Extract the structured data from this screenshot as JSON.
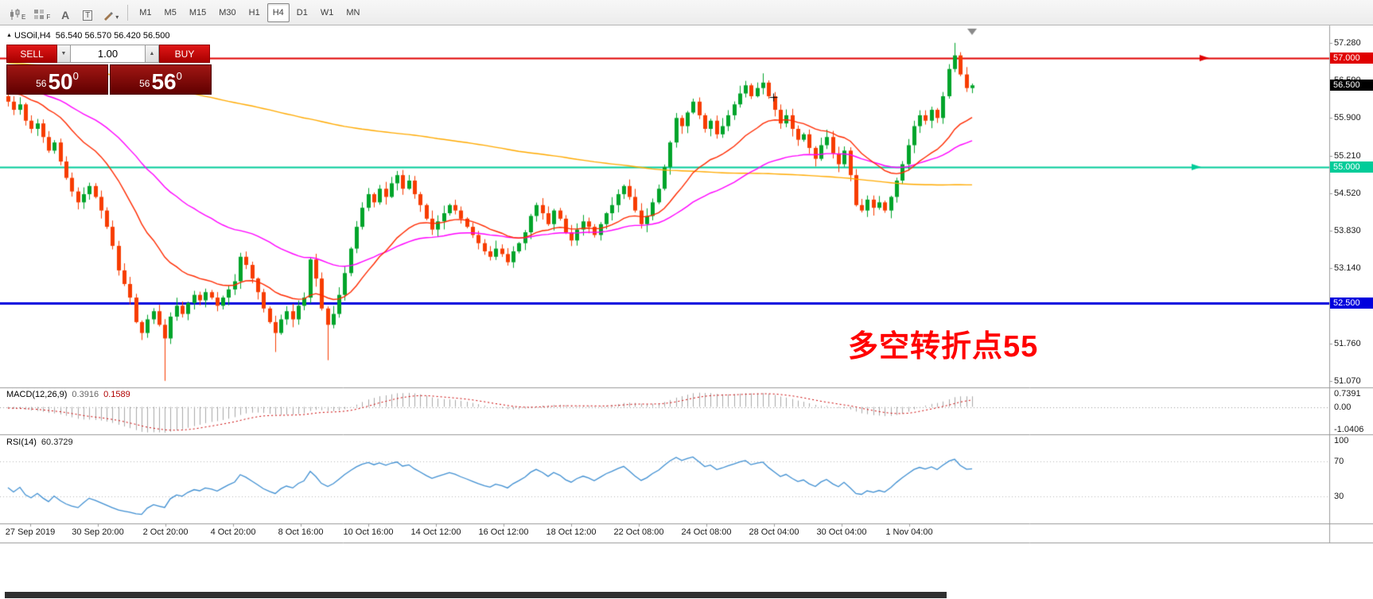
{
  "toolbar": {
    "icons": [
      {
        "name": "candlestick-chart-icon",
        "sub": "E"
      },
      {
        "name": "tile-windows-icon",
        "sub": "F"
      },
      {
        "name": "text-tool-icon",
        "glyph": "A"
      },
      {
        "name": "textbox-tool-icon",
        "glyph": "T"
      },
      {
        "name": "draw-tool-icon",
        "caret": "▾"
      }
    ],
    "timeframes": [
      "M1",
      "M5",
      "M15",
      "M30",
      "H1",
      "H4",
      "D1",
      "W1",
      "MN"
    ],
    "active_timeframe": "H4"
  },
  "symbol_header": {
    "triangle": "▲",
    "symbol": "USOil,H4",
    "ohlc": "56.540 56.570 56.420 56.500"
  },
  "trade_panel": {
    "sell_label": "SELL",
    "buy_label": "BUY",
    "volume": "1.00",
    "dec_glyph": "▼",
    "inc_glyph": "▲",
    "bid_display": {
      "prefix": "56",
      "big": "50",
      "sup": "0"
    },
    "ask_display": {
      "prefix": "56",
      "big": "56",
      "sup": "0"
    }
  },
  "chart_data": {
    "type": "candlestick",
    "symbol": "USOil",
    "timeframe": "H4",
    "title": "USOil,H4 56.540 56.570 56.420 56.500",
    "price_axis": {
      "labels": [
        "57.280",
        "56.590",
        "55.900",
        "55.210",
        "54.520",
        "53.830",
        "53.140",
        "52.450",
        "51.760",
        "51.070"
      ],
      "max": 57.6,
      "min": 50.95
    },
    "hlines": [
      {
        "price": 57.0,
        "label": "57.000",
        "color": "#e00000",
        "width": 2
      },
      {
        "price": 55.0,
        "label": "55.000",
        "color": "#00cc99",
        "width": 2
      },
      {
        "price": 52.5,
        "label": "52.500",
        "color": "#0000dd",
        "width": 3
      }
    ],
    "current_price": {
      "price": 56.5,
      "label": "56.500",
      "badge_color": "#000000"
    },
    "candles": {
      "up_color": "#00a42a",
      "down_color": "#f73c00",
      "first_open": 56.3,
      "closes": [
        56.2,
        56.05,
        56.15,
        55.85,
        55.7,
        55.8,
        55.55,
        55.3,
        55.45,
        55.1,
        54.8,
        54.55,
        54.35,
        54.5,
        54.65,
        54.45,
        54.2,
        53.9,
        53.55,
        53.1,
        52.85,
        52.6,
        52.15,
        51.95,
        52.2,
        52.35,
        52.1,
        51.85,
        52.25,
        52.45,
        52.3,
        52.5,
        52.65,
        52.55,
        52.7,
        52.6,
        52.45,
        52.6,
        52.75,
        52.9,
        53.35,
        53.2,
        52.95,
        52.7,
        52.4,
        52.15,
        51.95,
        52.2,
        52.35,
        52.2,
        52.45,
        52.6,
        53.3,
        52.95,
        52.4,
        52.1,
        52.3,
        52.65,
        53.05,
        53.5,
        53.9,
        54.25,
        54.5,
        54.35,
        54.6,
        54.45,
        54.7,
        54.85,
        54.6,
        54.75,
        54.5,
        54.3,
        54.05,
        53.85,
        54.0,
        54.15,
        54.3,
        54.2,
        54.05,
        53.9,
        53.75,
        53.6,
        53.45,
        53.35,
        53.5,
        53.4,
        53.25,
        53.45,
        53.6,
        53.8,
        54.1,
        54.3,
        54.15,
        53.95,
        54.2,
        54.05,
        53.8,
        53.65,
        53.85,
        54.0,
        53.9,
        53.75,
        53.95,
        54.15,
        54.3,
        54.5,
        54.65,
        54.45,
        54.2,
        53.95,
        54.1,
        54.35,
        54.6,
        55.0,
        55.45,
        55.9,
        55.75,
        56.0,
        56.2,
        55.95,
        55.7,
        55.85,
        55.6,
        55.75,
        55.95,
        56.15,
        56.35,
        56.5,
        56.3,
        56.45,
        56.55,
        56.3,
        56.05,
        55.8,
        55.95,
        55.7,
        55.5,
        55.6,
        55.35,
        55.15,
        55.4,
        55.55,
        55.25,
        55.05,
        55.3,
        54.85,
        54.3,
        54.2,
        54.4,
        54.25,
        54.35,
        54.2,
        54.45,
        54.75,
        55.05,
        55.4,
        55.75,
        55.95,
        55.85,
        56.05,
        55.9,
        56.3,
        56.8,
        57.05,
        56.7,
        56.45,
        56.5
      ],
      "special_wicks": {
        "27": {
          "low": 51.07
        },
        "46": {
          "low": 51.6
        },
        "55": {
          "low": 51.45
        },
        "130": {
          "high": 56.72
        },
        "163": {
          "high": 57.28
        }
      }
    },
    "moving_averages": [
      {
        "name": "slow-ma",
        "period": 200,
        "type": "sma",
        "color": "#ffaa00"
      },
      {
        "name": "medium-ma",
        "period": 50,
        "type": "ema",
        "color": "#ff00ff"
      },
      {
        "name": "fast-ma",
        "period": 20,
        "type": "ema",
        "color": "#ff2a00"
      }
    ],
    "macd": {
      "label": "MACD(12,26,9)",
      "value_main": "0.3916",
      "value_signal": "0.1589",
      "fast": 12,
      "slow": 26,
      "signal": 9,
      "axis_labels": [
        "0.7391",
        "0.00",
        "-1.0406"
      ],
      "axis_values": [
        0.7391,
        0.0,
        -1.0406
      ],
      "ylim": [
        -1.0406,
        0.7391
      ],
      "histogram_color": "#a8a8a8",
      "signal_color": "#cc0000"
    },
    "rsi": {
      "label": "RSI(14)",
      "value": "60.3729",
      "period": 14,
      "axis_labels": [
        "100",
        "70",
        "30"
      ],
      "axis_values": [
        100,
        70,
        30
      ],
      "levels": [
        70,
        30
      ],
      "ylim": [
        0,
        100
      ],
      "color": "#3f8fd2"
    },
    "time_labels": [
      "27 Sep 2019",
      "30 Sep 20:00",
      "2 Oct 20:00",
      "4 Oct 20:00",
      "8 Oct 16:00",
      "10 Oct 16:00",
      "14 Oct 12:00",
      "16 Oct 12:00",
      "18 Oct 12:00",
      "22 Oct 08:00",
      "24 Oct 08:00",
      "28 Oct 04:00",
      "30 Oct 04:00",
      "1 Nov 04:00"
    ],
    "annotation": {
      "text": "多空转折点55",
      "color": "#ff0000"
    }
  }
}
